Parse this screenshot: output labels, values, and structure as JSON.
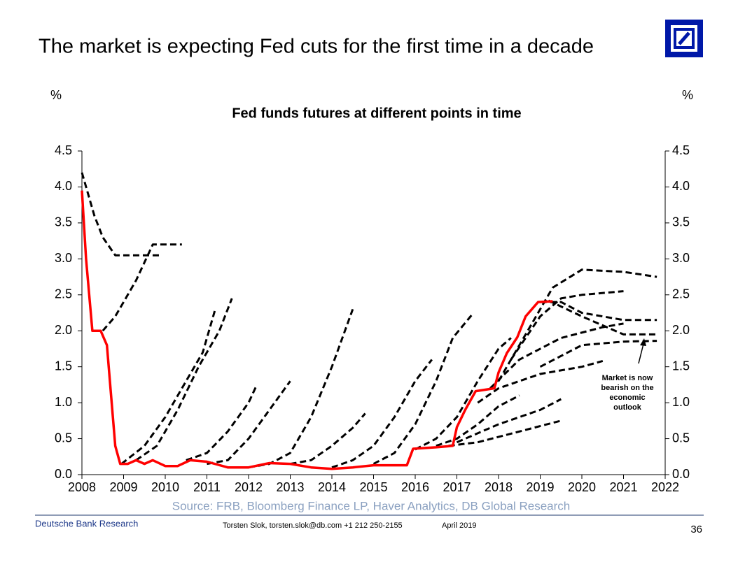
{
  "page_title": "The market is expecting Fed cuts for the first time in a decade",
  "chart_data": {
    "type": "line",
    "title": "Fed funds futures at different points in time",
    "ylabel": "%",
    "y2label": "%",
    "xlim": [
      2008,
      2022
    ],
    "xticks": [
      2008,
      2009,
      2010,
      2011,
      2012,
      2013,
      2014,
      2015,
      2016,
      2017,
      2018,
      2019,
      2020,
      2021,
      2022
    ],
    "ylim": [
      0,
      4.5
    ],
    "yticks": [
      {
        "value": 0,
        "label": "0.0"
      },
      {
        "value": 0.5,
        "label": "0.5"
      },
      {
        "value": 1,
        "label": "1.0"
      },
      {
        "value": 1.5,
        "label": "1.5"
      },
      {
        "value": 2,
        "label": "2.0"
      },
      {
        "value": 2.5,
        "label": "2.5"
      },
      {
        "value": 3,
        "label": "3.0"
      },
      {
        "value": 3.5,
        "label": "3.5"
      },
      {
        "value": 4,
        "label": "4.0"
      },
      {
        "value": 4.5,
        "label": "4.5"
      }
    ],
    "y2lim": [
      0,
      4.5
    ],
    "y2ticks": [
      {
        "value": 0,
        "label": "0.0"
      },
      {
        "value": 0.5,
        "label": "0.5"
      },
      {
        "value": 1,
        "label": "1.0"
      },
      {
        "value": 1.5,
        "label": "1.5"
      },
      {
        "value": 2,
        "label": "2.0"
      },
      {
        "value": 2.5,
        "label": "2.5"
      },
      {
        "value": 3,
        "label": "3.0"
      },
      {
        "value": 3.5,
        "label": "3.5"
      },
      {
        "value": 4,
        "label": "4.0"
      },
      {
        "value": 4.5,
        "label": "4.5"
      }
    ],
    "annotation": [
      "Market is now",
      "bearish on the",
      "economic",
      "outlook"
    ],
    "series": [
      {
        "color": "#000000",
        "line_style": "dashed",
        "x": [
          2008,
          2008.3,
          2008.5,
          2008.8,
          2009.9
        ],
        "values": [
          4.2,
          3.6,
          3.3,
          3.05,
          3.05
        ]
      },
      {
        "color": "#000000",
        "line_style": "dashed",
        "x": [
          2008.5,
          2008.8,
          2009,
          2009.3,
          2009.7,
          2010.4
        ],
        "values": [
          2.0,
          2.2,
          2.4,
          2.7,
          3.2,
          3.2
        ]
      },
      {
        "color": "#000000",
        "line_style": "dashed",
        "x": [
          2008.95,
          2009.5,
          2010,
          2010.5,
          2010.9,
          2011.2
        ],
        "values": [
          0.15,
          0.4,
          0.8,
          1.3,
          1.7,
          2.3
        ]
      },
      {
        "color": "#000000",
        "line_style": "dashed",
        "x": [
          2009.3,
          2009.8,
          2010.3,
          2010.8,
          2011.3,
          2011.6
        ],
        "values": [
          0.2,
          0.4,
          0.9,
          1.5,
          2.0,
          2.45
        ]
      },
      {
        "color": "#000000",
        "line_style": "dashed",
        "x": [
          2010.5,
          2011,
          2011.5,
          2012,
          2012.2
        ],
        "values": [
          0.2,
          0.3,
          0.6,
          1.0,
          1.25
        ]
      },
      {
        "color": "#000000",
        "line_style": "dashed",
        "x": [
          2011,
          2011.5,
          2012,
          2012.5,
          2013
        ],
        "values": [
          0.15,
          0.2,
          0.5,
          0.9,
          1.3
        ]
      },
      {
        "color": "#000000",
        "line_style": "dashed",
        "x": [
          2012,
          2012.5,
          2013,
          2013.5,
          2014,
          2014.5
        ],
        "values": [
          0.1,
          0.15,
          0.3,
          0.8,
          1.5,
          2.3
        ]
      },
      {
        "color": "#000000",
        "line_style": "dashed",
        "x": [
          2013,
          2013.5,
          2014,
          2014.5,
          2014.8
        ],
        "values": [
          0.15,
          0.2,
          0.4,
          0.65,
          0.85
        ]
      },
      {
        "color": "#000000",
        "line_style": "dashed",
        "x": [
          2014,
          2014.5,
          2015,
          2015.5,
          2016,
          2016.4
        ],
        "values": [
          0.1,
          0.2,
          0.4,
          0.8,
          1.3,
          1.6
        ]
      },
      {
        "color": "#000000",
        "line_style": "dashed",
        "x": [
          2015,
          2015.5,
          2016,
          2016.5,
          2016.9,
          2017.4
        ],
        "values": [
          0.15,
          0.3,
          0.7,
          1.3,
          1.9,
          2.25
        ]
      },
      {
        "color": "#000000",
        "line_style": "dashed",
        "x": [
          2016,
          2016.5,
          2017,
          2017.5,
          2018,
          2018.3
        ],
        "values": [
          0.35,
          0.5,
          0.8,
          1.3,
          1.75,
          1.9
        ]
      },
      {
        "color": "#000000",
        "line_style": "dashed",
        "x": [
          2016.5,
          2017,
          2017.5,
          2018,
          2018.5
        ],
        "values": [
          0.4,
          0.5,
          0.7,
          0.95,
          1.1
        ]
      },
      {
        "color": "#000000",
        "line_style": "dashed",
        "x": [
          2016.8,
          2017.5,
          2018.5,
          2019.5
        ],
        "values": [
          0.4,
          0.45,
          0.6,
          0.75
        ]
      },
      {
        "color": "#000000",
        "line_style": "dashed",
        "x": [
          2017,
          2018,
          2019,
          2019.5
        ],
        "values": [
          0.45,
          0.7,
          0.9,
          1.05
        ]
      },
      {
        "color": "#000000",
        "line_style": "dashed",
        "x": [
          2017.5,
          2018,
          2019,
          2020,
          2020.5
        ],
        "values": [
          1.0,
          1.2,
          1.4,
          1.5,
          1.58
        ]
      },
      {
        "color": "#000000",
        "line_style": "dashed",
        "x": [
          2017.8,
          2018.5,
          2019.5,
          2020.5,
          2021
        ],
        "values": [
          1.2,
          1.6,
          1.9,
          2.05,
          2.1
        ]
      },
      {
        "color": "#000000",
        "line_style": "dashed",
        "x": [
          2018,
          2018.7,
          2019.3,
          2020,
          2021,
          2021.8
        ],
        "values": [
          1.3,
          2.0,
          2.6,
          2.85,
          2.82,
          2.75
        ]
      },
      {
        "color": "#000000",
        "line_style": "dashed",
        "x": [
          2018.3,
          2019,
          2019.5,
          2020,
          2021
        ],
        "values": [
          1.6,
          2.2,
          2.45,
          2.5,
          2.55
        ]
      },
      {
        "color": "#000000",
        "line_style": "dashed",
        "x": [
          2019,
          2019.5,
          2020,
          2021,
          2021.8
        ],
        "values": [
          2.4,
          2.4,
          2.25,
          2.15,
          2.15
        ]
      },
      {
        "color": "#000000",
        "line_style": "dashed",
        "x": [
          2019.2,
          2020,
          2021,
          2021.8
        ],
        "values": [
          2.42,
          2.2,
          1.95,
          1.95
        ]
      },
      {
        "color": "#000000",
        "line_style": "dashed",
        "x": [
          2019,
          2020,
          2021,
          2021.8
        ],
        "values": [
          1.5,
          1.8,
          1.85,
          1.86
        ]
      },
      {
        "color": "#ff0000",
        "line_style": "solid",
        "x": [
          2008,
          2008.1,
          2008.25,
          2008.45,
          2008.6,
          2008.8,
          2008.92,
          2009.1,
          2009.3,
          2009.5,
          2009.7,
          2010,
          2010.3,
          2010.6,
          2011,
          2011.5,
          2012,
          2012.5,
          2013,
          2013.5,
          2014,
          2014.5,
          2015,
          2015.8,
          2015.95,
          2016.5,
          2016.9,
          2017,
          2017.2,
          2017.45,
          2017.9,
          2018,
          2018.2,
          2018.45,
          2018.65,
          2018.95,
          2019.3
        ],
        "values": [
          3.95,
          3.0,
          2.0,
          2.0,
          1.8,
          0.4,
          0.15,
          0.15,
          0.2,
          0.15,
          0.2,
          0.12,
          0.12,
          0.2,
          0.18,
          0.1,
          0.1,
          0.16,
          0.15,
          0.1,
          0.08,
          0.1,
          0.13,
          0.13,
          0.36,
          0.38,
          0.4,
          0.66,
          0.9,
          1.16,
          1.2,
          1.42,
          1.69,
          1.91,
          2.2,
          2.4,
          2.41
        ]
      }
    ]
  },
  "source": "Source: FRB, Bloomberg Finance LP, Haver Analytics, DB Global Research",
  "footer": {
    "brand": "Deutsche Bank Research",
    "author": "Torsten Slok, torsten.slok@db.com  +1 212 250-2155",
    "date": "April 2019",
    "page": "36"
  }
}
